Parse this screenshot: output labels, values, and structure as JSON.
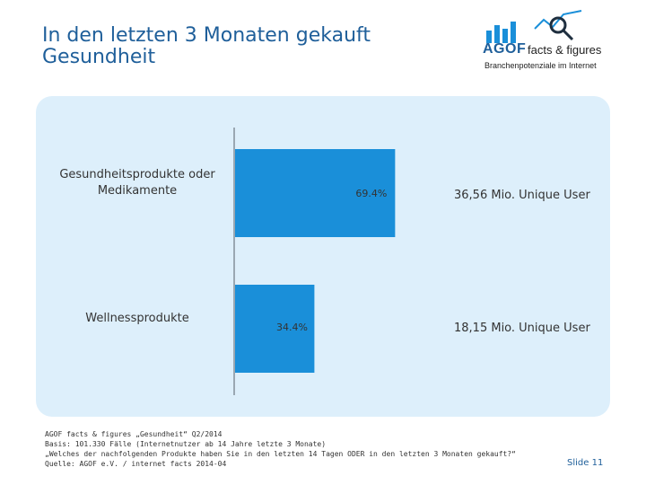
{
  "title": "In den letzten 3 Monaten gekauft Gesundheit",
  "logo": {
    "brand": "AGOF",
    "product": "facts & figures",
    "tagline": "Branchenpotenziale im Internet",
    "bar_color": "#1a8fd9"
  },
  "chart_data": {
    "type": "bar",
    "orientation": "horizontal",
    "categories": [
      "Gesundheitsprodukte oder Medikamente",
      "Wellnessprodukte"
    ],
    "values": [
      69.4,
      34.4
    ],
    "value_labels": [
      "69.4%",
      "34.4%"
    ],
    "unique_users": [
      "36,56 Mio. Unique User",
      "18,15 Mio. Unique User"
    ],
    "bar_color": "#1a8fd9",
    "xlim": [
      0,
      100
    ],
    "grid": false
  },
  "footer": {
    "line1": "AGOF facts & figures „Gesundheit“ Q2/2014",
    "line2": "Basis: 101.330 Fälle (Internetnutzer ab 14 Jahre letzte 3 Monate)",
    "line3": "„Welches der nachfolgenden Produkte haben Sie in den letzten 14 Tagen ODER in den letzten 3 Monaten gekauft?“",
    "line4": "Quelle: AGOF e.V. / internet facts 2014-04"
  },
  "slide_label": "Slide 11"
}
